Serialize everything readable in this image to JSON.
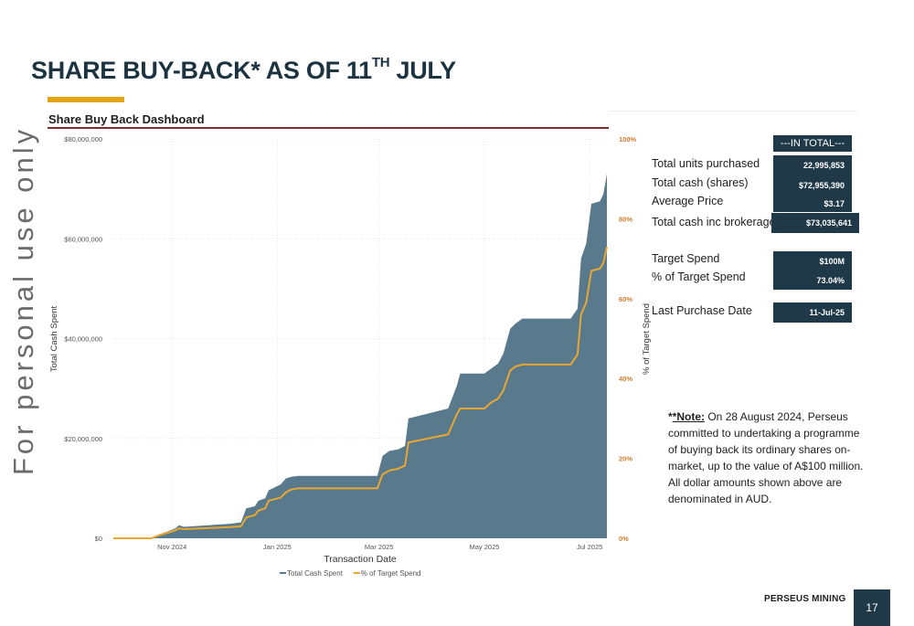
{
  "slide": {
    "title_main": "SHARE BUY-BACK* AS OF 11",
    "title_sup": "TH",
    "title_end": " JULY",
    "watermark": "For personal use only",
    "page_number": "17",
    "brand": "PERSEUS MINING",
    "accent_color": "#e2a516",
    "dark_color": "#1f3948"
  },
  "dashboard": {
    "title": "Share Buy Back Dashboard",
    "in_total_header": "---IN TOTAL---",
    "kpis": [
      {
        "label": "Total units purchased",
        "value": "22,995,853"
      },
      {
        "label": "Total cash (shares)",
        "value": "$72,955,390"
      },
      {
        "label": "Average Price",
        "value": "$3.17"
      },
      {
        "label": "Total cash inc brokerage",
        "value": "$73,035,641"
      },
      {
        "label": "Target Spend",
        "value": "$100M"
      },
      {
        "label": "% of Target Spend",
        "value": "73.04%"
      },
      {
        "label": "Last Purchase Date",
        "value": "11-Jul-25"
      }
    ]
  },
  "note": {
    "lead": "*Note:",
    "text": " On 28 August 2024, Perseus committed to undertaking a programme of buying back its ordinary shares on-market, up to the value of A$100 million. All dollar amounts shown above are denominated in AUD."
  },
  "chart_data": {
    "type": "area",
    "title": "Share Buy Back Dashboard",
    "xlabel": "Transaction Date",
    "ylabel": "Total Cash Spent",
    "y2label": "% of Target Spend",
    "x_ticks": [
      "Nov 2024",
      "Jan 2025",
      "Mar 2025",
      "May 2025",
      "Jul 2025"
    ],
    "x_tick_dates": [
      "2024-11-01",
      "2025-01-01",
      "2025-03-01",
      "2025-05-01",
      "2025-07-01"
    ],
    "y_ticks": [
      "$0",
      "$20,000,000",
      "$40,000,000",
      "$60,000,000",
      "$80,000,000"
    ],
    "y2_ticks": [
      "0%",
      "20%",
      "40%",
      "60%",
      "80%",
      "100%"
    ],
    "ylim": [
      0,
      80000000
    ],
    "y2lim": [
      0,
      100
    ],
    "xlim": [
      "2024-09-28",
      "2025-07-11"
    ],
    "grid": true,
    "legend_position": "bottom",
    "legend": [
      "Total Cash Spent",
      "% of Target Spend"
    ],
    "series": [
      {
        "name": "Total Cash Spent",
        "kind": "area",
        "color": "#587a8c",
        "x": [
          "2024-09-28",
          "2024-10-20",
          "2024-10-24",
          "2024-10-28",
          "2024-11-03",
          "2024-11-05",
          "2024-11-08",
          "2024-12-05",
          "2024-12-11",
          "2024-12-14",
          "2024-12-19",
          "2024-12-21",
          "2024-12-25",
          "2024-12-27",
          "2025-01-03",
          "2025-01-06",
          "2025-01-09",
          "2025-01-13",
          "2025-01-16",
          "2025-01-20",
          "2025-02-28",
          "2025-03-03",
          "2025-03-07",
          "2025-03-12",
          "2025-03-16",
          "2025-03-18",
          "2025-04-10",
          "2025-04-15",
          "2025-04-17",
          "2025-04-19",
          "2025-04-26",
          "2025-05-01",
          "2025-05-05",
          "2025-05-09",
          "2025-05-12",
          "2025-05-16",
          "2025-05-19",
          "2025-05-23",
          "2025-06-20",
          "2025-06-24",
          "2025-06-26",
          "2025-06-28",
          "2025-06-29",
          "2025-07-02",
          "2025-07-07",
          "2025-07-09",
          "2025-07-11"
        ],
        "values": [
          0,
          0,
          700000,
          1200000,
          2000000,
          2600000,
          2300000,
          2900000,
          3200000,
          6000000,
          6400000,
          7500000,
          8000000,
          9600000,
          10800000,
          12000000,
          12300000,
          12500000,
          12500000,
          12500000,
          12500000,
          16500000,
          17500000,
          17800000,
          18500000,
          24000000,
          26000000,
          30500000,
          33000000,
          33000000,
          33000000,
          33000000,
          34000000,
          35000000,
          37000000,
          42000000,
          43000000,
          44000000,
          44000000,
          46000000,
          56000000,
          58000000,
          59000000,
          67000000,
          67500000,
          69000000,
          73000000
        ]
      },
      {
        "name": "% of Target Spend",
        "kind": "line",
        "color": "#e8a632",
        "axis": "y2",
        "x": [
          "2024-09-28",
          "2024-10-20",
          "2024-10-24",
          "2024-10-28",
          "2024-11-03",
          "2024-11-05",
          "2024-11-08",
          "2024-12-05",
          "2024-12-11",
          "2024-12-14",
          "2024-12-19",
          "2024-12-21",
          "2024-12-25",
          "2024-12-27",
          "2025-01-03",
          "2025-01-06",
          "2025-01-09",
          "2025-01-13",
          "2025-02-28",
          "2025-03-03",
          "2025-03-07",
          "2025-03-12",
          "2025-03-16",
          "2025-03-18",
          "2025-04-10",
          "2025-04-15",
          "2025-04-17",
          "2025-04-19",
          "2025-05-01",
          "2025-05-05",
          "2025-05-09",
          "2025-05-12",
          "2025-05-16",
          "2025-05-19",
          "2025-05-23",
          "2025-06-20",
          "2025-06-24",
          "2025-06-26",
          "2025-06-28",
          "2025-06-29",
          "2025-07-02",
          "2025-07-07",
          "2025-07-09",
          "2025-07-11"
        ],
        "values": [
          0,
          0,
          0.7,
          1.2,
          2.0,
          2.5,
          2.3,
          2.8,
          3.0,
          5.2,
          5.8,
          6.9,
          7.5,
          9.4,
          10.2,
          11.5,
          12.2,
          12.5,
          12.5,
          16.0,
          17.0,
          17.4,
          18.2,
          24.0,
          26.0,
          31.0,
          32.5,
          32.5,
          32.5,
          34.0,
          35.0,
          37.0,
          42.0,
          43.0,
          43.5,
          43.5,
          46.0,
          56.0,
          58.0,
          59.0,
          67.0,
          67.5,
          69.0,
          73.0
        ]
      }
    ]
  }
}
